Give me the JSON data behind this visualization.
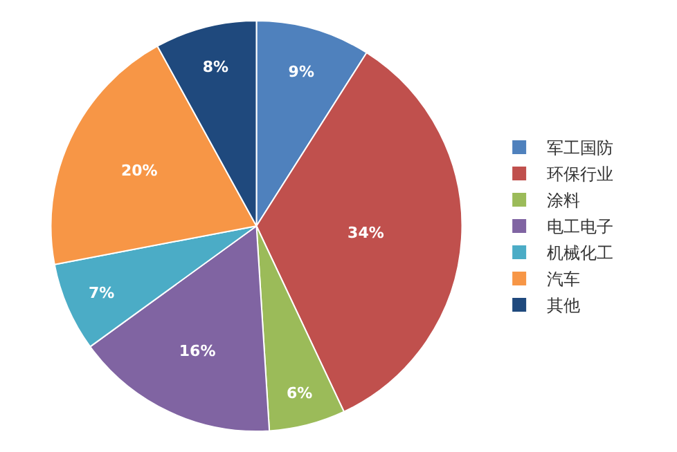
{
  "chart_data": {
    "type": "pie",
    "categories": [
      "军工国防",
      "环保行业",
      "涂料",
      "电工电子",
      "机械化工",
      "汽车",
      "其他"
    ],
    "values": [
      9,
      34,
      6,
      16,
      7,
      20,
      8
    ],
    "value_labels": [
      "9%",
      "34%",
      "6%",
      "16%",
      "7%",
      "20%",
      "8%"
    ],
    "colors": [
      "#4f81bd",
      "#c0504d",
      "#9bbb59",
      "#8064a2",
      "#4bacc6",
      "#f79646",
      "#1f497d"
    ],
    "legend": "right"
  }
}
